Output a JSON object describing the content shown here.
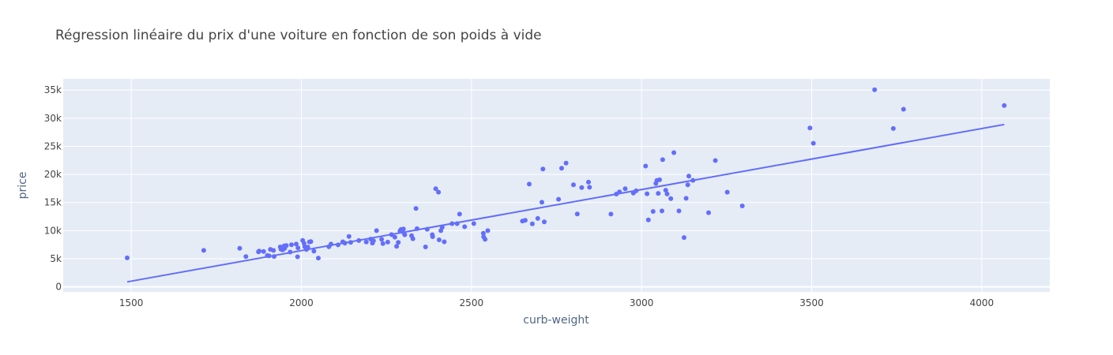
{
  "chart_data": {
    "type": "scatter",
    "title": "Régression linéaire du prix d'une voiture en fonction de son poids à vide",
    "xlabel": "curb-weight",
    "ylabel": "price",
    "xlim": [
      1300,
      4200
    ],
    "ylim": [
      -900,
      37000
    ],
    "grid": true,
    "x_ticks": [
      1500,
      2000,
      2500,
      3000,
      3500,
      4000
    ],
    "x_tick_labels": [
      "1500",
      "2000",
      "2500",
      "3000",
      "3500",
      "4000"
    ],
    "y_ticks": [
      0,
      5000,
      10000,
      15000,
      20000,
      25000,
      30000,
      35000
    ],
    "y_tick_labels": [
      "0",
      "5k",
      "10k",
      "15k",
      "20k",
      "25k",
      "30k",
      "35k"
    ],
    "colors": {
      "points": "#636efa",
      "line": "#636efa",
      "plot_bg": "#e5ecf6",
      "grid": "#ffffff"
    },
    "series": [
      {
        "mode": "markers",
        "x": [
          1488,
          1713,
          1819,
          1837,
          1874,
          1876,
          1889,
          1900,
          1905,
          1909,
          1918,
          1920,
          1938,
          1940,
          1945,
          1950,
          1951,
          1956,
          1967,
          1971,
          1985,
          1989,
          1990,
          2004,
          2008,
          2010,
          2015,
          2017,
          2019,
          2024,
          2028,
          2037,
          2050,
          2081,
          2087,
          2108,
          2122,
          2128,
          2140,
          2145,
          2169,
          2191,
          2204,
          2209,
          2212,
          2221,
          2236,
          2240,
          2254,
          2265,
          2275,
          2280,
          2285,
          2290,
          2293,
          2300,
          2302,
          2304,
          2324,
          2328,
          2337,
          2340,
          2365,
          2370,
          2385,
          2386,
          2395,
          2403,
          2405,
          2410,
          2414,
          2420,
          2443,
          2458,
          2465,
          2480,
          2507,
          2535,
          2536,
          2540,
          2548,
          2650,
          2658,
          2670,
          2679,
          2695,
          2707,
          2710,
          2714,
          2756,
          2765,
          2778,
          2800,
          2811,
          2824,
          2844,
          2847,
          2910,
          2926,
          2935,
          2952,
          2976,
          2984,
          3012,
          3016,
          3020,
          3034,
          3042,
          3045,
          3049,
          3053,
          3060,
          3062,
          3071,
          3075,
          3086,
          3095,
          3110,
          3125,
          3131,
          3136,
          3139,
          3151,
          3197,
          3217,
          3252,
          3296,
          3495,
          3505,
          3685,
          3740,
          3770,
          4066
        ],
        "y": [
          5151,
          6479,
          6855,
          5389,
          6229,
          6377,
          6295,
          5572,
          5499,
          6669,
          6488,
          5399,
          7099,
          6692,
          6575,
          7295,
          6849,
          7349,
          6189,
          7499,
          7609,
          5348,
          6938,
          8249,
          7738,
          7129,
          6649,
          6918,
          7053,
          7999,
          8058,
          6338,
          5118,
          7126,
          7603,
          7463,
          8013,
          7775,
          8948,
          7895,
          8238,
          7975,
          8495,
          7788,
          8195,
          9995,
          8449,
          7689,
          7957,
          9295,
          8845,
          7198,
          7898,
          9960,
          10198,
          10295,
          9549,
          9258,
          9095,
          8558,
          13950,
          10345,
          7099,
          10245,
          9279,
          8921,
          17450,
          16845,
          8358,
          9989,
          10595,
          8013,
          11245,
          11248,
          12945,
          10698,
          11259,
          9538,
          8916,
          8449,
          9995,
          11694,
          11850,
          18280,
          11199,
          12170,
          15040,
          20970,
          11549,
          15580,
          21105,
          22018,
          18150,
          12964,
          17669,
          18620,
          17710,
          12940,
          16500,
          16900,
          17450,
          16695,
          17075,
          21485,
          16558,
          11900,
          13415,
          18399,
          18920,
          16630,
          19045,
          13499,
          22625,
          17199,
          16515,
          15690,
          23875,
          13499,
          8778,
          15750,
          18150,
          19699,
          18950,
          13200,
          22470,
          16845,
          14399,
          28248,
          25552,
          35056,
          28176,
          31600,
          32250
        ]
      },
      {
        "mode": "lines",
        "x": [
          1488,
          4066
        ],
        "y": [
          884,
          28884
        ]
      }
    ]
  }
}
